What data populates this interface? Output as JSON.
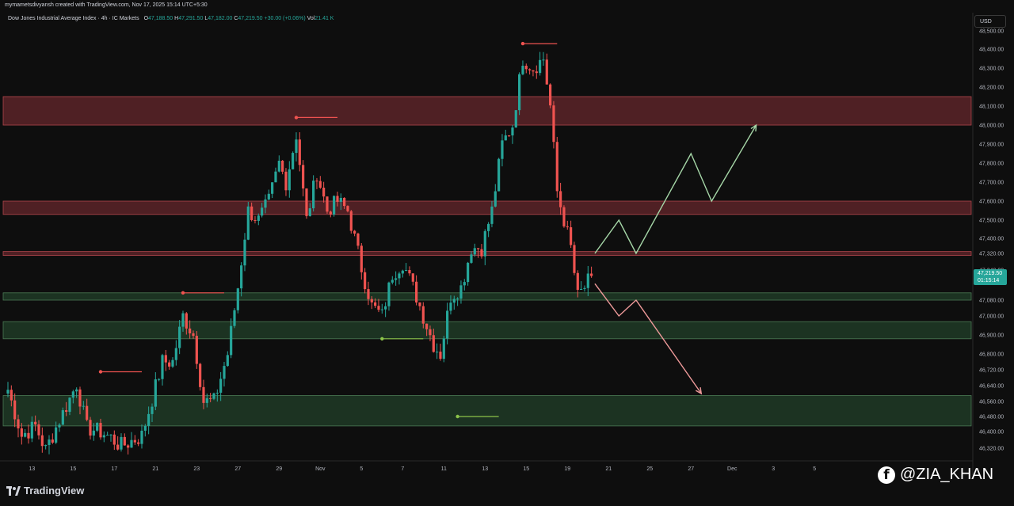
{
  "header": {
    "credit": "mymametsdivyansh created with TradingView.com, Nov 17, 2025 15:14 UTC+5:30",
    "symbol": "Dow Jones Industrial Average Index · 4h · IC Markets",
    "open_label": "O",
    "open": "47,188.50",
    "high_label": "H",
    "high": "47,291.50",
    "low_label": "L",
    "low": "47,182.00",
    "close_label": "C",
    "close": "47,219.50",
    "change": "+30.00 (+0.06%)",
    "volume_label": "Vol",
    "volume": "21.41 K"
  },
  "currency": "USD",
  "price_tag": {
    "price": "47,219.50",
    "countdown": "01:15:14"
  },
  "footer": {
    "brand": "TradingView",
    "watermark": "@ZIA_KHAN",
    "watermark_icon": "facebook-icon"
  },
  "colors": {
    "up": "#26a69a",
    "down": "#ef5350",
    "supply_zone": "#5a2328",
    "demand_zone": "#1e3a26",
    "bull_path": "#a5d6a7",
    "bear_path": "#ef9a9a"
  },
  "chart_data": {
    "type": "candlestick",
    "timeframe": "4h",
    "y_ticks": [
      46320,
      46400,
      46480,
      46560,
      46640,
      46720,
      46800,
      46900,
      47000,
      47080,
      47180,
      47240,
      47320,
      47400,
      47500,
      47600,
      47700,
      47800,
      47900,
      48000,
      48100,
      48200,
      48300,
      48400,
      48500
    ],
    "y_tick_labels": [
      "46,320.00",
      "46,400.00",
      "46,480.00",
      "46,560.00",
      "46,640.00",
      "46,720.00",
      "46,800.00",
      "46,900.00",
      "47,000.00",
      "47,080.00",
      "47,180.00",
      "47,240.00",
      "47,320.00",
      "47,400.00",
      "47,500.00",
      "47,600.00",
      "47,700.00",
      "47,800.00",
      "47,900.00",
      "48,000.00",
      "48,100.00",
      "48,200.00",
      "48,300.00",
      "48,400.00",
      "48,500.00"
    ],
    "x_ticks": [
      {
        "label": "13",
        "bar": 7
      },
      {
        "label": "15",
        "bar": 19
      },
      {
        "label": "17",
        "bar": 31
      },
      {
        "label": "21",
        "bar": 43
      },
      {
        "label": "23",
        "bar": 55
      },
      {
        "label": "27",
        "bar": 67
      },
      {
        "label": "29",
        "bar": 79
      },
      {
        "label": "Nov",
        "bar": 91
      },
      {
        "label": "5",
        "bar": 103
      },
      {
        "label": "7",
        "bar": 115
      },
      {
        "label": "11",
        "bar": 127
      },
      {
        "label": "13",
        "bar": 139
      },
      {
        "label": "15",
        "bar": 151
      },
      {
        "label": "19",
        "bar": 163
      },
      {
        "label": "21",
        "bar": 175
      },
      {
        "label": "25",
        "bar": 187
      },
      {
        "label": "27",
        "bar": 199
      },
      {
        "label": "Dec",
        "bar": 211
      },
      {
        "label": "3",
        "bar": 223
      },
      {
        "label": "5",
        "bar": 235
      }
    ],
    "anchors": [
      {
        "bar": 0,
        "price": 46620
      },
      {
        "bar": 4,
        "price": 46380
      },
      {
        "bar": 8,
        "price": 46430
      },
      {
        "bar": 11,
        "price": 46310
      },
      {
        "bar": 15,
        "price": 46460
      },
      {
        "bar": 20,
        "price": 46650
      },
      {
        "bar": 23,
        "price": 46420
      },
      {
        "bar": 27,
        "price": 46400
      },
      {
        "bar": 30,
        "price": 46370
      },
      {
        "bar": 33,
        "price": 46330
      },
      {
        "bar": 39,
        "price": 46380
      },
      {
        "bar": 45,
        "price": 46760
      },
      {
        "bar": 48,
        "price": 46760
      },
      {
        "bar": 51,
        "price": 47000
      },
      {
        "bar": 54,
        "price": 46900
      },
      {
        "bar": 57,
        "price": 46560
      },
      {
        "bar": 60,
        "price": 46560
      },
      {
        "bar": 64,
        "price": 46800
      },
      {
        "bar": 67,
        "price": 47150
      },
      {
        "bar": 70,
        "price": 47550
      },
      {
        "bar": 73,
        "price": 47500
      },
      {
        "bar": 76,
        "price": 47600
      },
      {
        "bar": 79,
        "price": 47800
      },
      {
        "bar": 81,
        "price": 47700
      },
      {
        "bar": 84,
        "price": 47950
      },
      {
        "bar": 87,
        "price": 47500
      },
      {
        "bar": 90,
        "price": 47750
      },
      {
        "bar": 93,
        "price": 47550
      },
      {
        "bar": 96,
        "price": 47600
      },
      {
        "bar": 99,
        "price": 47550
      },
      {
        "bar": 103,
        "price": 47250
      },
      {
        "bar": 106,
        "price": 47050
      },
      {
        "bar": 109,
        "price": 47000
      },
      {
        "bar": 112,
        "price": 47220
      },
      {
        "bar": 115,
        "price": 47280
      },
      {
        "bar": 118,
        "price": 47150
      },
      {
        "bar": 121,
        "price": 47000
      },
      {
        "bar": 124,
        "price": 46850
      },
      {
        "bar": 126,
        "price": 46800
      },
      {
        "bar": 129,
        "price": 47100
      },
      {
        "bar": 132,
        "price": 47150
      },
      {
        "bar": 135,
        "price": 47350
      },
      {
        "bar": 138,
        "price": 47350
      },
      {
        "bar": 141,
        "price": 47550
      },
      {
        "bar": 144,
        "price": 47900
      },
      {
        "bar": 147,
        "price": 48000
      },
      {
        "bar": 150,
        "price": 48350
      },
      {
        "bar": 153,
        "price": 48300
      },
      {
        "bar": 156,
        "price": 48350
      },
      {
        "bar": 158,
        "price": 48100
      },
      {
        "bar": 160,
        "price": 47650
      },
      {
        "bar": 162,
        "price": 47500
      },
      {
        "bar": 164,
        "price": 47350
      },
      {
        "bar": 166,
        "price": 47100
      },
      {
        "bar": 168,
        "price": 47150
      },
      {
        "bar": 170,
        "price": 47210
      }
    ],
    "candle_spacing_bars": 1,
    "zones": [
      {
        "kind": "supply",
        "from": 48000,
        "to": 48150
      },
      {
        "kind": "supply",
        "from": 47530,
        "to": 47600
      },
      {
        "kind": "supply",
        "from": 47310,
        "to": 47330
      },
      {
        "kind": "demand",
        "from": 47080,
        "to": 47120
      },
      {
        "kind": "demand",
        "from": 46880,
        "to": 46970
      },
      {
        "kind": "demand",
        "from": 46430,
        "to": 46590
      }
    ],
    "level_lines": [
      {
        "kind": "high",
        "price": 48430,
        "bar_from": 150,
        "bar_to": 160
      },
      {
        "kind": "high",
        "price": 48040,
        "bar_from": 84,
        "bar_to": 96
      },
      {
        "kind": "high",
        "price": 47120,
        "bar_from": 51,
        "bar_to": 63
      },
      {
        "kind": "high",
        "price": 46710,
        "bar_from": 27,
        "bar_to": 39
      },
      {
        "kind": "low",
        "price": 46880,
        "bar_from": 109,
        "bar_to": 121
      },
      {
        "kind": "low",
        "price": 46480,
        "bar_from": 131,
        "bar_to": 143
      }
    ],
    "projection_bull": [
      {
        "bar": 171,
        "price": 47320
      },
      {
        "bar": 178,
        "price": 47500
      },
      {
        "bar": 183,
        "price": 47320
      },
      {
        "bar": 199,
        "price": 47850
      },
      {
        "bar": 205,
        "price": 47600
      },
      {
        "bar": 218,
        "price": 48000
      }
    ],
    "projection_bear": [
      {
        "bar": 171,
        "price": 47170
      },
      {
        "bar": 178,
        "price": 47000
      },
      {
        "bar": 183,
        "price": 47080
      },
      {
        "bar": 202,
        "price": 46600
      }
    ]
  }
}
